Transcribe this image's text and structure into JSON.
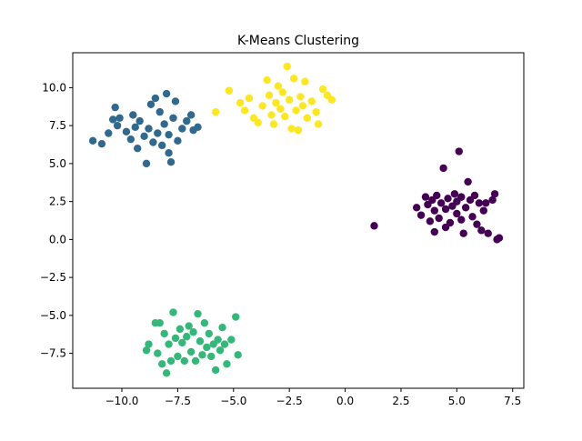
{
  "chart_data": {
    "type": "scatter",
    "title": "K-Means Clustering",
    "xlabel": "",
    "ylabel": "",
    "xlim": [
      -12.2,
      8.0
    ],
    "ylim": [
      -9.8,
      12.3
    ],
    "xticks": [
      -10.0,
      -7.5,
      -5.0,
      -2.5,
      0.0,
      2.5,
      5.0,
      7.5
    ],
    "yticks": [
      10.0,
      7.5,
      5.0,
      2.5,
      0.0,
      -2.5,
      -5.0,
      -7.5
    ],
    "xtick_labels": [
      "−10.0",
      "−7.5",
      "−5.0",
      "−2.5",
      "0.0",
      "2.5",
      "5.0",
      "7.5"
    ],
    "ytick_labels": [
      "10.0",
      "7.5",
      "5.0",
      "2.5",
      "0.0",
      "−2.5",
      "−5.0",
      "−7.5"
    ],
    "grid": false,
    "series": [
      {
        "color": "#440154",
        "points": [
          [
            1.3,
            0.9
          ],
          [
            3.2,
            2.1
          ],
          [
            3.4,
            1.6
          ],
          [
            3.6,
            2.8
          ],
          [
            3.7,
            2.3
          ],
          [
            3.8,
            1.2
          ],
          [
            3.9,
            2.6
          ],
          [
            4.0,
            0.5
          ],
          [
            4.0,
            1.9
          ],
          [
            4.1,
            2.9
          ],
          [
            4.2,
            1.4
          ],
          [
            4.3,
            2.4
          ],
          [
            4.4,
            4.7
          ],
          [
            4.5,
            0.8
          ],
          [
            4.5,
            2.0
          ],
          [
            4.6,
            2.7
          ],
          [
            4.7,
            1.1
          ],
          [
            4.8,
            2.2
          ],
          [
            4.9,
            3.0
          ],
          [
            5.0,
            1.7
          ],
          [
            5.0,
            2.5
          ],
          [
            5.1,
            5.8
          ],
          [
            5.2,
            1.3
          ],
          [
            5.2,
            2.8
          ],
          [
            5.3,
            0.4
          ],
          [
            5.4,
            2.1
          ],
          [
            5.5,
            3.8
          ],
          [
            5.6,
            2.6
          ],
          [
            5.7,
            1.5
          ],
          [
            5.8,
            2.9
          ],
          [
            5.9,
            1.0
          ],
          [
            6.0,
            2.4
          ],
          [
            6.1,
            0.6
          ],
          [
            6.2,
            1.9
          ],
          [
            6.3,
            2.4
          ],
          [
            6.4,
            0.4
          ],
          [
            6.6,
            2.6
          ],
          [
            6.7,
            3.0
          ],
          [
            6.8,
            0.0
          ],
          [
            6.9,
            0.1
          ]
        ]
      },
      {
        "color": "#31688e",
        "points": [
          [
            -11.3,
            6.5
          ],
          [
            -10.9,
            6.3
          ],
          [
            -10.6,
            7.0
          ],
          [
            -10.4,
            7.9
          ],
          [
            -10.3,
            8.7
          ],
          [
            -10.2,
            7.5
          ],
          [
            -10.1,
            8.0
          ],
          [
            -9.8,
            7.1
          ],
          [
            -9.6,
            6.6
          ],
          [
            -9.5,
            8.2
          ],
          [
            -9.4,
            7.4
          ],
          [
            -9.3,
            6.0
          ],
          [
            -9.2,
            7.8
          ],
          [
            -9.0,
            6.8
          ],
          [
            -8.9,
            5.0
          ],
          [
            -8.8,
            7.3
          ],
          [
            -8.7,
            8.9
          ],
          [
            -8.6,
            6.4
          ],
          [
            -8.5,
            9.3
          ],
          [
            -8.4,
            7.0
          ],
          [
            -8.3,
            8.4
          ],
          [
            -8.2,
            6.2
          ],
          [
            -8.1,
            7.6
          ],
          [
            -8.0,
            9.6
          ],
          [
            -7.9,
            6.9
          ],
          [
            -7.9,
            5.7
          ],
          [
            -7.8,
            5.1
          ],
          [
            -7.7,
            8.0
          ],
          [
            -7.6,
            9.1
          ],
          [
            -7.5,
            6.5
          ],
          [
            -7.3,
            7.3
          ],
          [
            -7.1,
            7.8
          ],
          [
            -6.9,
            8.2
          ],
          [
            -6.8,
            7.2
          ],
          [
            -6.6,
            7.4
          ]
        ]
      },
      {
        "color": "#35b779",
        "points": [
          [
            -8.9,
            -7.3
          ],
          [
            -8.8,
            -6.9
          ],
          [
            -8.5,
            -5.5
          ],
          [
            -8.4,
            -7.5
          ],
          [
            -8.3,
            -5.5
          ],
          [
            -8.2,
            -8.2
          ],
          [
            -8.1,
            -6.2
          ],
          [
            -8.0,
            -8.8
          ],
          [
            -7.9,
            -6.9
          ],
          [
            -7.8,
            -8.0
          ],
          [
            -7.7,
            -4.8
          ],
          [
            -7.6,
            -6.5
          ],
          [
            -7.5,
            -7.7
          ],
          [
            -7.4,
            -5.9
          ],
          [
            -7.3,
            -6.8
          ],
          [
            -7.2,
            -8.0
          ],
          [
            -7.1,
            -6.4
          ],
          [
            -7.0,
            -5.7
          ],
          [
            -6.9,
            -7.4
          ],
          [
            -6.8,
            -6.1
          ],
          [
            -6.7,
            -8.0
          ],
          [
            -6.6,
            -4.9
          ],
          [
            -6.5,
            -6.7
          ],
          [
            -6.4,
            -7.6
          ],
          [
            -6.3,
            -5.5
          ],
          [
            -6.2,
            -7.1
          ],
          [
            -6.1,
            -6.2
          ],
          [
            -6.0,
            -7.7
          ],
          [
            -5.9,
            -6.9
          ],
          [
            -5.8,
            -8.6
          ],
          [
            -5.7,
            -6.6
          ],
          [
            -5.6,
            -7.3
          ],
          [
            -5.5,
            -5.8
          ],
          [
            -5.4,
            -6.9
          ],
          [
            -5.3,
            -8.2
          ],
          [
            -5.1,
            -6.6
          ],
          [
            -4.9,
            -5.1
          ],
          [
            -4.8,
            -7.6
          ]
        ]
      },
      {
        "color": "#fde725",
        "points": [
          [
            -5.8,
            8.4
          ],
          [
            -5.2,
            9.8
          ],
          [
            -4.7,
            9.0
          ],
          [
            -4.5,
            8.5
          ],
          [
            -4.3,
            9.3
          ],
          [
            -4.1,
            8.0
          ],
          [
            -3.9,
            7.7
          ],
          [
            -3.7,
            8.8
          ],
          [
            -3.5,
            10.5
          ],
          [
            -3.4,
            9.5
          ],
          [
            -3.3,
            8.2
          ],
          [
            -3.2,
            7.6
          ],
          [
            -3.1,
            9.0
          ],
          [
            -3.0,
            10.1
          ],
          [
            -2.9,
            8.6
          ],
          [
            -2.8,
            9.7
          ],
          [
            -2.7,
            8.1
          ],
          [
            -2.6,
            11.4
          ],
          [
            -2.5,
            9.2
          ],
          [
            -2.4,
            7.3
          ],
          [
            -2.3,
            10.6
          ],
          [
            -2.2,
            8.5
          ],
          [
            -2.1,
            7.2
          ],
          [
            -2.0,
            9.4
          ],
          [
            -1.9,
            8.8
          ],
          [
            -1.8,
            10.4
          ],
          [
            -1.7,
            8.0
          ],
          [
            -1.5,
            9.1
          ],
          [
            -1.3,
            8.4
          ],
          [
            -1.2,
            7.6
          ],
          [
            -1.0,
            9.9
          ],
          [
            -0.8,
            9.5
          ],
          [
            -0.6,
            9.2
          ]
        ]
      }
    ]
  }
}
